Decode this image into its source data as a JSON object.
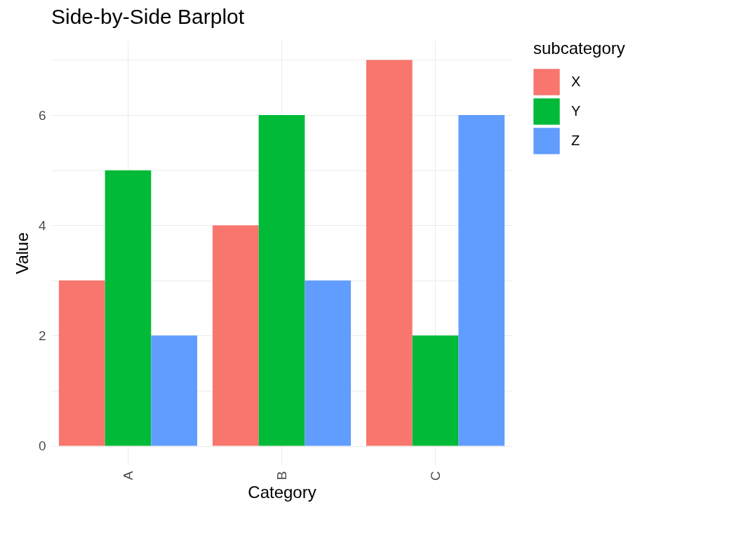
{
  "chart_data": {
    "type": "bar",
    "title": "Side-by-Side Barplot",
    "xlabel": "Category",
    "ylabel": "Value",
    "legend_title": "subcategory",
    "categories": [
      "A",
      "B",
      "C"
    ],
    "series": [
      {
        "name": "X",
        "color": "#f8766d",
        "values": [
          3,
          4,
          7
        ]
      },
      {
        "name": "Y",
        "color": "#00ba38",
        "values": [
          5,
          6,
          2
        ]
      },
      {
        "name": "Z",
        "color": "#619cff",
        "values": [
          2,
          3,
          6
        ]
      }
    ],
    "ylim": [
      -0.35,
      7.35
    ],
    "yticks": [
      0,
      {
        "value": 1,
        "label": null
      },
      2,
      {
        "value": 3,
        "label": null
      },
      4,
      {
        "value": 5,
        "label": null
      },
      6,
      {
        "value": 7,
        "label": null
      }
    ],
    "grid": true,
    "legend": "right"
  }
}
